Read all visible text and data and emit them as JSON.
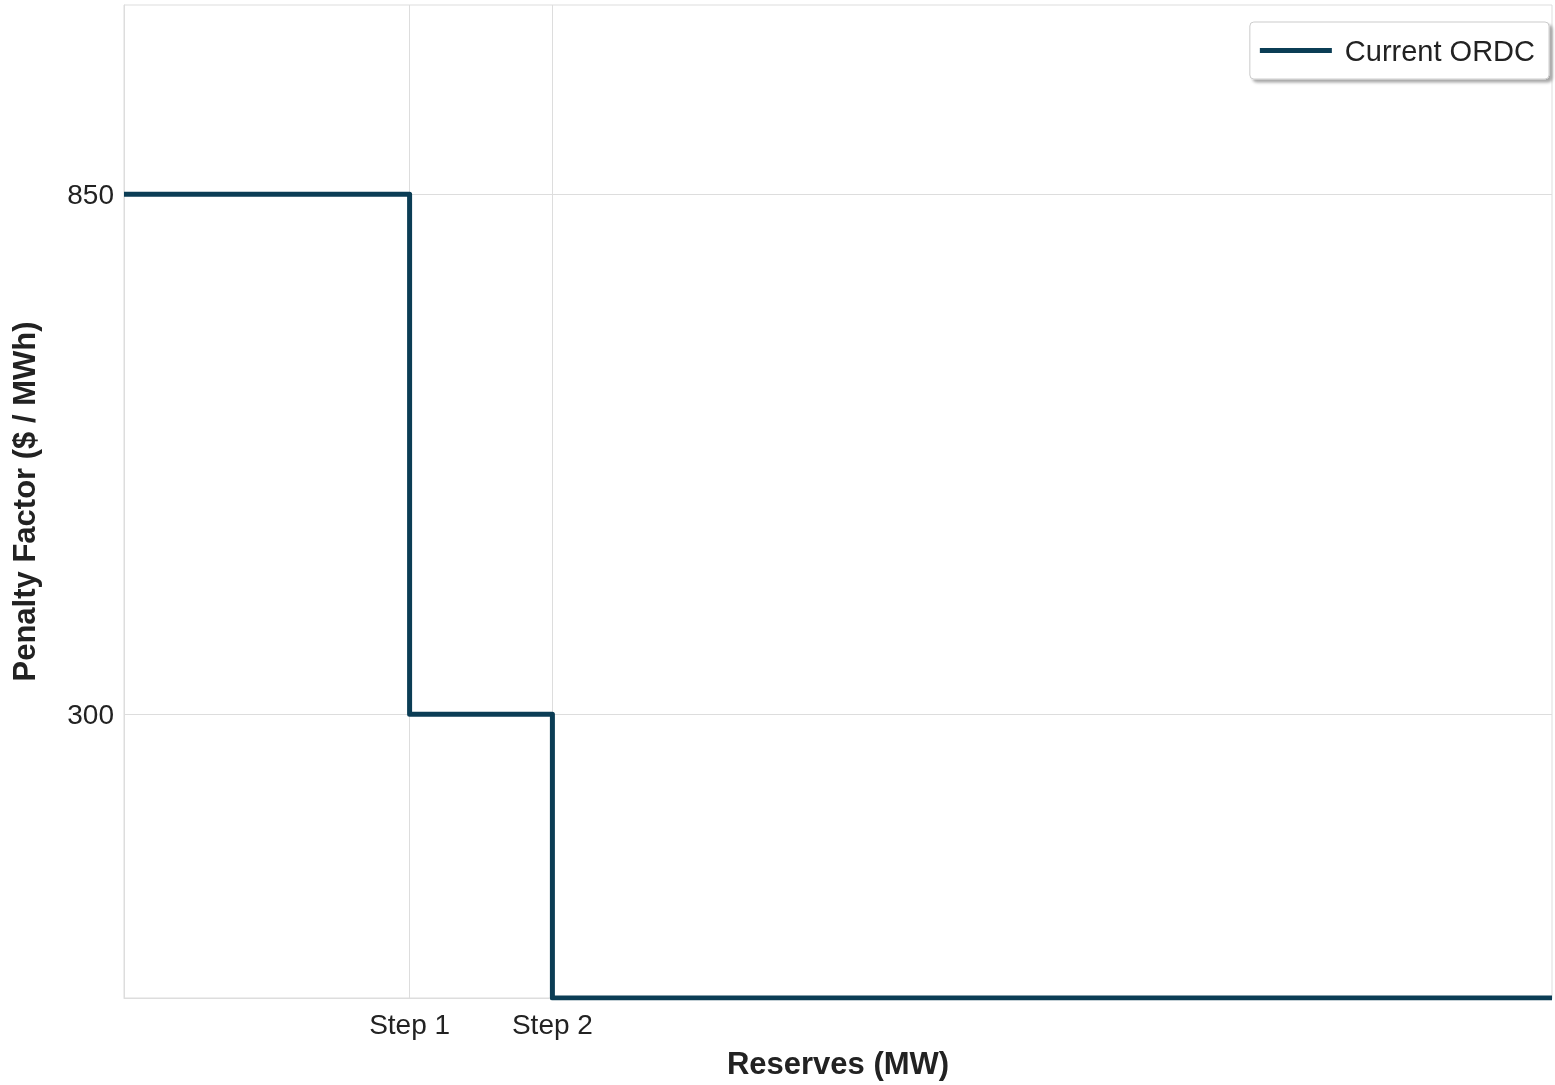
{
  "chart_data": {
    "type": "step",
    "xlabel": "Reserves (MW)",
    "ylabel": "Penalty Factor ($ / MWh)",
    "categories": [
      null,
      null,
      "Step 1",
      "Step 2",
      null,
      null,
      null,
      null,
      null,
      null,
      null
    ],
    "series": [
      {
        "name": "Current ORDC",
        "color": "#0b3d55",
        "values": [
          850,
          850,
          300,
          0,
          0,
          0,
          0,
          0,
          0,
          0,
          0
        ]
      }
    ],
    "ylim": [
      0,
      1050
    ],
    "yticks": [
      300,
      850
    ],
    "grid": true,
    "legend": "top right",
    "marker": "none",
    "line_style": "solid"
  }
}
